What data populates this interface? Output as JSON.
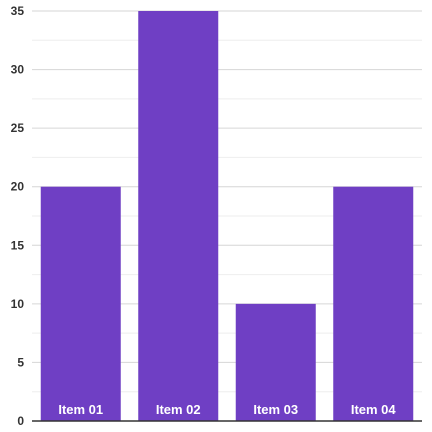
{
  "chart_data": {
    "type": "bar",
    "categories": [
      "Item 01",
      "Item 02",
      "Item 03",
      "Item 04"
    ],
    "values": [
      20,
      35,
      10,
      20
    ],
    "title": "",
    "xlabel": "",
    "ylabel": "",
    "ylim": [
      0,
      35
    ],
    "yticks": [
      "0",
      "5",
      "10",
      "15",
      "20",
      "25",
      "30",
      "35"
    ],
    "grid": true,
    "minor_grid": true,
    "category_labels_inside_bars": true,
    "bar_color": "#6f3fc4"
  }
}
